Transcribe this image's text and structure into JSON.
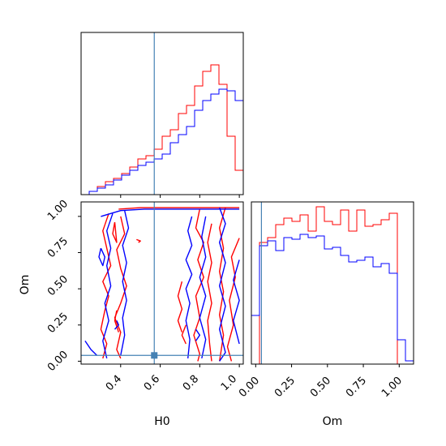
{
  "chart_data": {
    "type": "corner",
    "parameters": [
      "H0",
      "Om"
    ],
    "truths": {
      "H0": 0.57,
      "Om": 0.04
    },
    "series": [
      {
        "color": "#ff0000"
      },
      {
        "color": "#0000ff"
      }
    ],
    "truth_color": "#4682b4",
    "histograms": {
      "H0": {
        "xlim": [
          0.2,
          1.02
        ],
        "bin_edges": [
          0.2,
          0.241,
          0.282,
          0.323,
          0.364,
          0.405,
          0.446,
          0.487,
          0.528,
          0.569,
          0.61,
          0.651,
          0.692,
          0.733,
          0.774,
          0.815,
          0.856,
          0.897,
          0.938,
          0.979,
          1.02
        ],
        "series_counts": [
          [
            0,
            0.02,
            0.05,
            0.08,
            0.1,
            0.13,
            0.17,
            0.22,
            0.24,
            0.28,
            0.36,
            0.4,
            0.5,
            0.55,
            0.67,
            0.76,
            0.8,
            0.68,
            0.36,
            0.15
          ],
          [
            0,
            0.02,
            0.04,
            0.06,
            0.09,
            0.12,
            0.15,
            0.18,
            0.2,
            0.22,
            0.25,
            0.32,
            0.37,
            0.42,
            0.52,
            0.58,
            0.62,
            0.65,
            0.64,
            0.58
          ]
        ],
        "ticks": [
          0.4,
          0.6,
          0.8,
          1.0
        ]
      },
      "Om": {
        "xlim": [
          -0.03,
          1.1
        ],
        "bin_edges": [
          -0.03,
          0.0265,
          0.083,
          0.1395,
          0.196,
          0.2525,
          0.309,
          0.3655,
          0.422,
          0.4785,
          0.535,
          0.5915,
          0.648,
          0.7045,
          0.761,
          0.8175,
          0.874,
          0.9305,
          0.987,
          1.0435,
          1.1
        ],
        "series_counts": [
          [
            0,
            0.75,
            0.78,
            0.86,
            0.9,
            0.88,
            0.92,
            0.82,
            0.97,
            0.88,
            0.86,
            0.95,
            0.82,
            0.95,
            0.85,
            0.86,
            0.89,
            0.93,
            0,
            0
          ],
          [
            0.3,
            0.73,
            0.76,
            0.7,
            0.78,
            0.77,
            0.8,
            0.78,
            0.79,
            0.71,
            0.72,
            0.67,
            0.63,
            0.64,
            0.66,
            0.6,
            0.62,
            0.56,
            0.15,
            0.02
          ]
        ],
        "ticks": [
          0.0,
          0.25,
          0.5,
          0.75,
          1.0
        ]
      }
    },
    "joint": {
      "x": "H0",
      "y": "Om",
      "xlim": [
        0.2,
        1.02
      ],
      "ylim": [
        -0.02,
        1.1
      ],
      "xticks": [
        0.4,
        0.6,
        0.8,
        1.0
      ],
      "yticks": [
        0.0,
        0.25,
        0.5,
        0.75,
        1.0
      ],
      "contours": [
        {
          "series": 0,
          "points": [
            [
              0.39,
              1.05
            ],
            [
              0.5,
              1.06
            ],
            [
              0.62,
              1.06
            ],
            [
              0.75,
              1.06
            ],
            [
              0.88,
              1.06
            ],
            [
              1.0,
              1.06
            ]
          ]
        },
        {
          "series": 0,
          "points": [
            [
              0.34,
              1.02
            ],
            [
              0.31,
              0.9
            ],
            [
              0.33,
              0.78
            ],
            [
              0.35,
              0.66
            ],
            [
              0.31,
              0.55
            ],
            [
              0.34,
              0.45
            ],
            [
              0.32,
              0.35
            ],
            [
              0.3,
              0.22
            ],
            [
              0.33,
              0.12
            ],
            [
              0.31,
              0.02
            ]
          ]
        },
        {
          "series": 0,
          "points": [
            [
              0.4,
              1.0
            ],
            [
              0.42,
              0.88
            ],
            [
              0.38,
              0.77
            ],
            [
              0.4,
              0.64
            ],
            [
              0.43,
              0.52
            ],
            [
              0.4,
              0.4
            ],
            [
              0.37,
              0.3
            ],
            [
              0.4,
              0.2
            ],
            [
              0.38,
              0.08
            ],
            [
              0.4,
              0.02
            ]
          ]
        },
        {
          "series": 0,
          "points": [
            [
              0.37,
              0.96
            ],
            [
              0.36,
              0.88
            ],
            [
              0.38,
              0.82
            ],
            [
              0.37,
              0.96
            ]
          ]
        },
        {
          "series": 0,
          "points": [
            [
              0.48,
              0.84
            ],
            [
              0.5,
              0.83
            ],
            [
              0.49,
              0.82
            ]
          ]
        },
        {
          "series": 0,
          "points": [
            [
              0.38,
              0.35
            ],
            [
              0.37,
              0.28
            ],
            [
              0.39,
              0.2
            ]
          ]
        },
        {
          "series": 0,
          "points": [
            [
              0.8,
              1.05
            ],
            [
              0.78,
              0.92
            ],
            [
              0.82,
              0.82
            ],
            [
              0.79,
              0.7
            ],
            [
              0.82,
              0.58
            ],
            [
              0.78,
              0.45
            ],
            [
              0.8,
              0.3
            ],
            [
              0.77,
              0.18
            ],
            [
              0.8,
              0.05
            ],
            [
              0.79,
              0.0
            ]
          ]
        },
        {
          "series": 0,
          "points": [
            [
              0.86,
              0.95
            ],
            [
              0.84,
              0.82
            ],
            [
              0.86,
              0.68
            ],
            [
              0.84,
              0.55
            ],
            [
              0.86,
              0.4
            ],
            [
              0.84,
              0.28
            ],
            [
              0.85,
              0.12
            ],
            [
              0.86,
              0.0
            ]
          ]
        },
        {
          "series": 0,
          "points": [
            [
              0.93,
              1.06
            ],
            [
              0.9,
              0.92
            ],
            [
              0.92,
              0.78
            ],
            [
              0.9,
              0.62
            ],
            [
              0.92,
              0.48
            ],
            [
              0.9,
              0.32
            ],
            [
              0.92,
              0.18
            ],
            [
              0.9,
              0.0
            ]
          ]
        },
        {
          "series": 0,
          "points": [
            [
              1.0,
              0.85
            ],
            [
              0.96,
              0.72
            ],
            [
              0.98,
              0.58
            ],
            [
              0.95,
              0.42
            ],
            [
              0.97,
              0.25
            ],
            [
              0.94,
              0.1
            ],
            [
              0.96,
              0.0
            ]
          ]
        },
        {
          "series": 0,
          "points": [
            [
              0.71,
              0.55
            ],
            [
              0.69,
              0.45
            ],
            [
              0.71,
              0.36
            ],
            [
              0.69,
              0.28
            ],
            [
              0.71,
              0.2
            ]
          ]
        },
        {
          "series": 0,
          "points": [
            [
              0.73,
              0.25
            ],
            [
              0.71,
              0.18
            ],
            [
              0.73,
              0.12
            ]
          ]
        },
        {
          "series": 1,
          "points": [
            [
              0.3,
              1.0
            ],
            [
              0.4,
              1.04
            ],
            [
              0.52,
              1.05
            ],
            [
              0.65,
              1.05
            ],
            [
              0.78,
              1.05
            ],
            [
              0.9,
              1.05
            ],
            [
              1.0,
              1.05
            ]
          ]
        },
        {
          "series": 1,
          "points": [
            [
              0.36,
              1.02
            ],
            [
              0.33,
              0.9
            ],
            [
              0.35,
              0.78
            ],
            [
              0.33,
              0.66
            ],
            [
              0.35,
              0.52
            ],
            [
              0.32,
              0.4
            ],
            [
              0.34,
              0.28
            ],
            [
              0.31,
              0.14
            ],
            [
              0.33,
              0.02
            ]
          ]
        },
        {
          "series": 1,
          "points": [
            [
              0.42,
              1.04
            ],
            [
              0.44,
              0.92
            ],
            [
              0.41,
              0.8
            ],
            [
              0.43,
              0.68
            ],
            [
              0.41,
              0.55
            ],
            [
              0.43,
              0.42
            ],
            [
              0.41,
              0.3
            ],
            [
              0.42,
              0.18
            ],
            [
              0.4,
              0.04
            ]
          ]
        },
        {
          "series": 1,
          "points": [
            [
              0.3,
              0.78
            ],
            [
              0.32,
              0.72
            ],
            [
              0.31,
              0.66
            ],
            [
              0.29,
              0.72
            ],
            [
              0.3,
              0.78
            ]
          ]
        },
        {
          "series": 1,
          "points": [
            [
              0.38,
              0.28
            ],
            [
              0.39,
              0.25
            ],
            [
              0.37,
              0.22
            ]
          ]
        },
        {
          "series": 1,
          "points": [
            [
              0.22,
              0.14
            ],
            [
              0.25,
              0.08
            ],
            [
              0.28,
              0.04
            ]
          ]
        },
        {
          "series": 1,
          "points": [
            [
              0.76,
              1.0
            ],
            [
              0.74,
              0.9
            ],
            [
              0.76,
              0.8
            ],
            [
              0.73,
              0.7
            ],
            [
              0.76,
              0.6
            ],
            [
              0.73,
              0.5
            ],
            [
              0.75,
              0.4
            ],
            [
              0.73,
              0.28
            ],
            [
              0.75,
              0.15
            ],
            [
              0.74,
              0.02
            ]
          ]
        },
        {
          "series": 1,
          "points": [
            [
              0.83,
              1.0
            ],
            [
              0.81,
              0.86
            ],
            [
              0.83,
              0.72
            ],
            [
              0.8,
              0.58
            ],
            [
              0.83,
              0.45
            ],
            [
              0.8,
              0.3
            ],
            [
              0.83,
              0.15
            ],
            [
              0.81,
              0.02
            ]
          ]
        },
        {
          "series": 1,
          "points": [
            [
              0.9,
              1.06
            ],
            [
              0.93,
              0.95
            ],
            [
              0.9,
              0.82
            ],
            [
              0.93,
              0.68
            ],
            [
              0.9,
              0.52
            ],
            [
              0.93,
              0.38
            ],
            [
              0.9,
              0.22
            ],
            [
              0.93,
              0.06
            ],
            [
              0.9,
              0.0
            ]
          ]
        },
        {
          "series": 1,
          "points": [
            [
              1.0,
              0.7
            ],
            [
              0.97,
              0.56
            ],
            [
              1.0,
              0.42
            ],
            [
              0.97,
              0.28
            ],
            [
              1.0,
              0.12
            ]
          ]
        },
        {
          "series": 1,
          "points": [
            [
              0.78,
              0.22
            ],
            [
              0.8,
              0.18
            ],
            [
              0.78,
              0.14
            ]
          ]
        }
      ]
    }
  },
  "labels": {
    "joint_y": "Om",
    "h0_x": "H0",
    "om_x": "Om"
  },
  "ticklabels": {
    "h0": [
      "0.4",
      "0.6",
      "0.8",
      "1.0"
    ],
    "om_y": [
      "0.00",
      "0.25",
      "0.50",
      "0.75",
      "1.00"
    ],
    "om_x": [
      "0.00",
      "0.25",
      "0.50",
      "0.75",
      "1.00"
    ]
  }
}
